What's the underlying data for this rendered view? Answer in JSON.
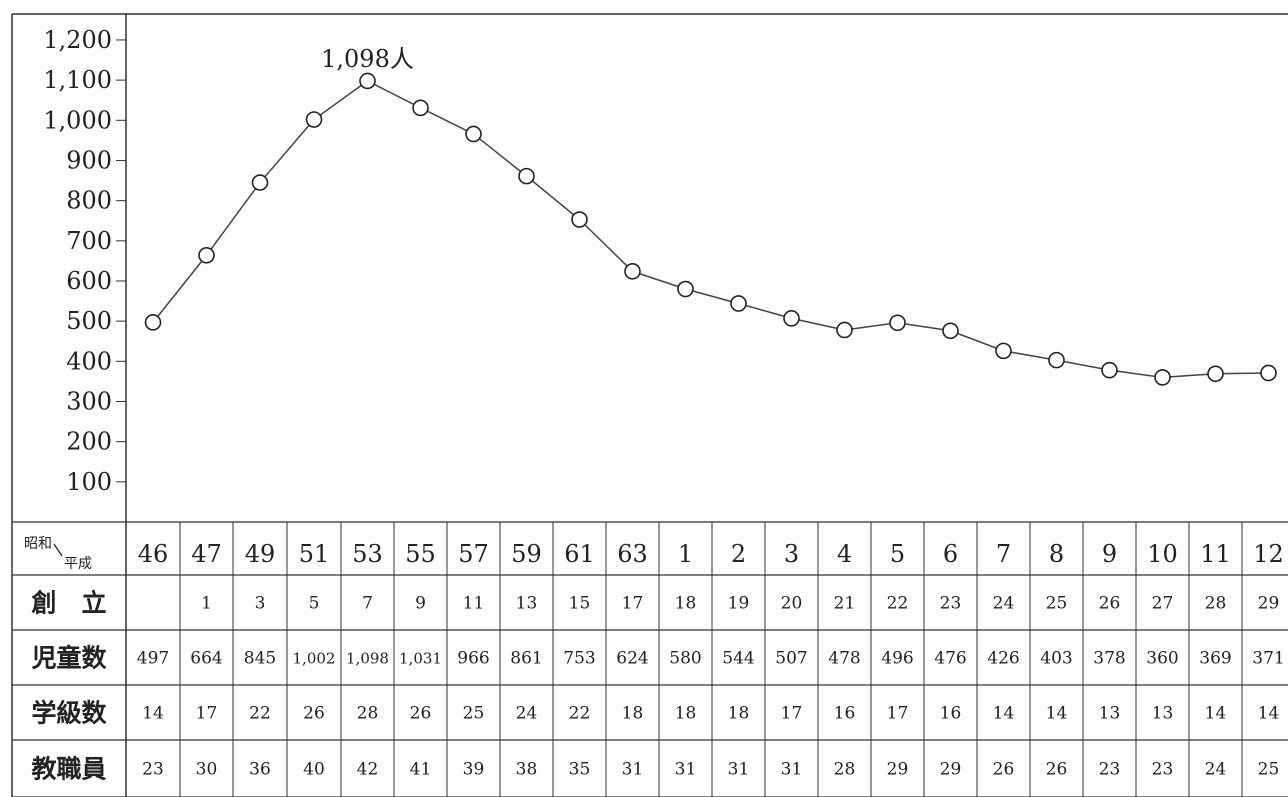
{
  "chart_data": {
    "type": "line",
    "y_ticks": [
      "1,200",
      "1,100",
      "1,000",
      "900",
      "800",
      "700",
      "600",
      "500",
      "400",
      "300",
      "200",
      "100"
    ],
    "ylim": [
      0,
      1200
    ],
    "peak_annotation": "1,098人",
    "header_label_top": "昭和",
    "header_label_bottom": "平成",
    "x": [
      "46",
      "47",
      "49",
      "51",
      "53",
      "55",
      "57",
      "59",
      "61",
      "63",
      "1",
      "2",
      "3",
      "4",
      "5",
      "6",
      "7",
      "8",
      "9",
      "10",
      "11",
      "12"
    ],
    "series": [
      {
        "values": [
          497,
          664,
          845,
          1002,
          1098,
          1031,
          966,
          861,
          753,
          624,
          580,
          544,
          507,
          478,
          496,
          476,
          426,
          403,
          378,
          360,
          369,
          371
        ]
      }
    ],
    "table_rows": [
      {
        "label": "創　立",
        "values": [
          "",
          "1",
          "3",
          "5",
          "7",
          "9",
          "11",
          "13",
          "15",
          "17",
          "18",
          "19",
          "20",
          "21",
          "22",
          "23",
          "24",
          "25",
          "26",
          "27",
          "28",
          "29"
        ]
      },
      {
        "label": "児童数",
        "values": [
          "497",
          "664",
          "845",
          "1,002",
          "1,098",
          "1,031",
          "966",
          "861",
          "753",
          "624",
          "580",
          "544",
          "507",
          "478",
          "496",
          "476",
          "426",
          "403",
          "378",
          "360",
          "369",
          "371"
        ]
      },
      {
        "label": "学級数",
        "values": [
          "14",
          "17",
          "22",
          "26",
          "28",
          "26",
          "25",
          "24",
          "22",
          "18",
          "18",
          "18",
          "17",
          "16",
          "17",
          "16",
          "14",
          "14",
          "13",
          "13",
          "14",
          "14"
        ]
      },
      {
        "label": "教職員",
        "values": [
          "23",
          "30",
          "36",
          "40",
          "42",
          "41",
          "39",
          "38",
          "35",
          "31",
          "31",
          "31",
          "31",
          "28",
          "29",
          "29",
          "26",
          "26",
          "23",
          "23",
          "24",
          "25"
        ]
      }
    ],
    "colors": {
      "line": "#444444",
      "grid": "#333333",
      "marker_fill": "#ffffff"
    }
  }
}
